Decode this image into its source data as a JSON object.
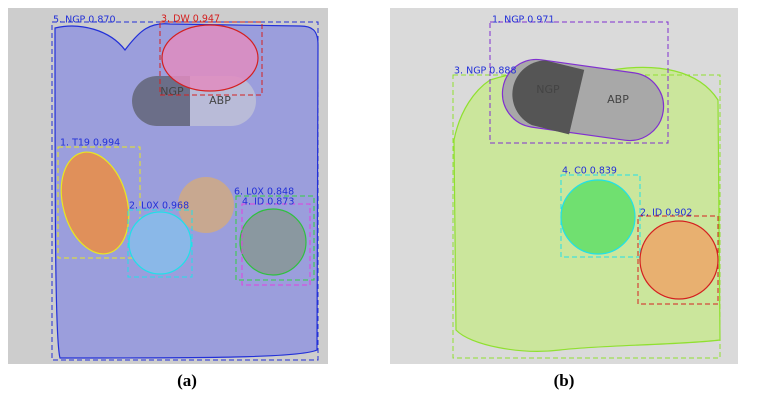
{
  "panels": [
    {
      "caption": "(a)",
      "detections": [
        "5. NGP 0.870",
        "3. DW 0.947",
        "1. T19 0.994",
        "2. L0X 0.968",
        "6. L0X 0.848",
        "4. ID 0.873"
      ],
      "imprints": [
        "NGP",
        "ABP"
      ]
    },
    {
      "caption": "(b)",
      "detections": [
        "1. NGP 0.971",
        "3. NGP 0.888",
        "4. C0 0.839",
        "2. ID 0.902"
      ],
      "imprints": [
        "NGP",
        "ABP"
      ]
    }
  ]
}
